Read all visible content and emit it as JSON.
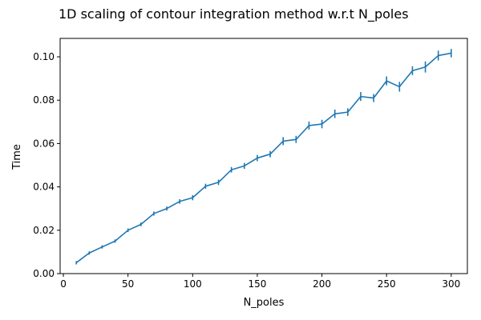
{
  "chart_data": {
    "type": "line",
    "title": "1D scaling of contour integration method w.r.t N_poles",
    "xlabel": "N_poles",
    "ylabel": "Time",
    "xlim": [
      -2.5,
      312.5
    ],
    "ylim": [
      0.0,
      0.1085
    ],
    "xticks": [
      0,
      50,
      100,
      150,
      200,
      250,
      300
    ],
    "yticks": [
      0.0,
      0.02,
      0.04,
      0.06,
      0.08,
      0.1
    ],
    "xtick_labels": [
      "0",
      "50",
      "100",
      "150",
      "200",
      "250",
      "300"
    ],
    "ytick_labels": [
      "0.00",
      "0.02",
      "0.04",
      "0.06",
      "0.08",
      "0.10"
    ],
    "grid": false,
    "line_color": "#1f77b4",
    "series": [
      {
        "x": [
          10,
          20,
          30,
          40,
          50,
          60,
          70,
          80,
          90,
          100,
          110,
          120,
          130,
          140,
          150,
          160,
          170,
          180,
          190,
          200,
          210,
          220,
          230,
          240,
          250,
          260,
          270,
          280,
          290,
          300
        ],
        "y": [
          0.005,
          0.0095,
          0.0123,
          0.015,
          0.02,
          0.0227,
          0.0277,
          0.03,
          0.0333,
          0.035,
          0.0403,
          0.0421,
          0.0479,
          0.0497,
          0.0533,
          0.0551,
          0.0611,
          0.0619,
          0.0683,
          0.069,
          0.0737,
          0.0745,
          0.0817,
          0.081,
          0.0889,
          0.0862,
          0.0936,
          0.0953,
          0.1006,
          0.1017
        ],
        "yerr": [
          0.0002,
          0.0002,
          0.0002,
          0.0002,
          0.0003,
          0.0003,
          0.0004,
          0.0004,
          0.0005,
          0.0006,
          0.0006,
          0.0007,
          0.0007,
          0.0008,
          0.0009,
          0.0009,
          0.0013,
          0.0011,
          0.0013,
          0.0014,
          0.0014,
          0.0012,
          0.0015,
          0.0013,
          0.0015,
          0.0017,
          0.0015,
          0.002,
          0.0017,
          0.0014
        ]
      }
    ]
  }
}
